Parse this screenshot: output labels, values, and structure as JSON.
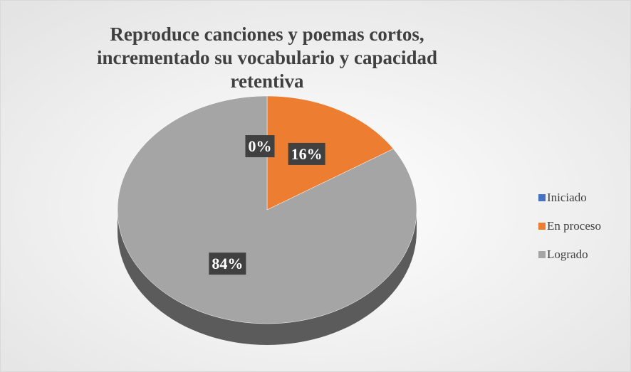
{
  "chart_data": {
    "type": "pie",
    "title": "Reproduce canciones y poemas cortos, incrementado su vocabulario y capacidad retentiva",
    "categories": [
      "Iniciado",
      "En proceso",
      "Logrado"
    ],
    "values": [
      0,
      16,
      84
    ],
    "value_labels": [
      "0%",
      "16%",
      "84%"
    ],
    "colors": [
      "#4472c4",
      "#ed7d31",
      "#a5a5a5"
    ],
    "legend": "right"
  }
}
